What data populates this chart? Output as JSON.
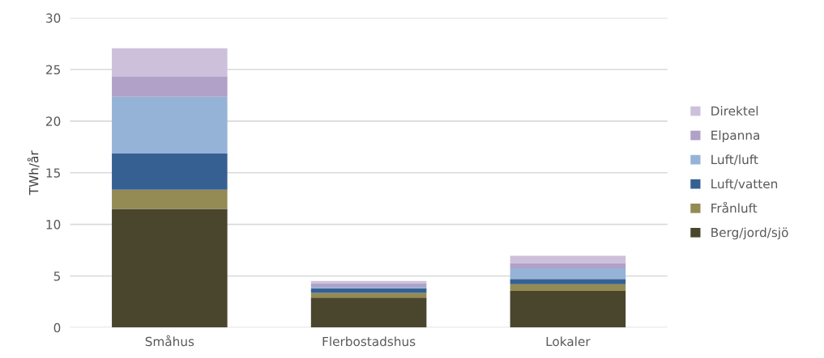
{
  "chart_data": {
    "type": "bar",
    "stacked": true,
    "ylabel": "TWh/år",
    "categories": [
      "Småhus",
      "Flerbostadshus",
      "Lokaler"
    ],
    "series": [
      {
        "name": "Berg/jord/sjö",
        "color": "#4a452d",
        "values": [
          11.5,
          2.9,
          3.55
        ]
      },
      {
        "name": "Frånluft",
        "color": "#948a54",
        "values": [
          1.85,
          0.45,
          0.65
        ]
      },
      {
        "name": "Luft/vatten",
        "color": "#366092",
        "values": [
          3.5,
          0.45,
          0.5
        ]
      },
      {
        "name": "Luft/luft",
        "color": "#95b3d7",
        "values": [
          5.5,
          0.15,
          1.05
        ]
      },
      {
        "name": "Elpanna",
        "color": "#b1a0c7",
        "values": [
          1.95,
          0.35,
          0.5
        ]
      },
      {
        "name": "Direktel",
        "color": "#ccc0da",
        "values": [
          2.75,
          0.2,
          0.7
        ]
      }
    ],
    "ylim": [
      0,
      30
    ],
    "yticks": [
      0,
      5,
      10,
      15,
      20,
      25,
      30
    ],
    "grid": "y",
    "legend": "right"
  }
}
